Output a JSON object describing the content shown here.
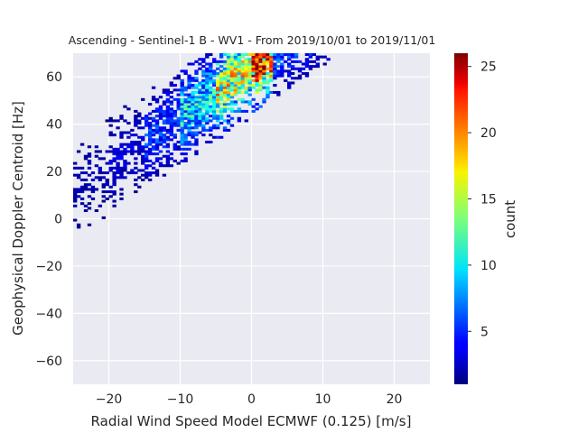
{
  "chart_data": {
    "type": "heatmap",
    "title": "Ascending - Sentinel-1 B - WV1 - From 2019/10/01 to 2019/11/01",
    "xlabel": "Radial Wind Speed Model ECMWF (0.125) [m/s]",
    "ylabel": "Geophysical Doppler Centroid [Hz]",
    "xlim": [
      -25,
      25
    ],
    "ylim": [
      -70,
      70
    ],
    "xticks": [
      -20,
      -10,
      0,
      10,
      20
    ],
    "yticks": [
      -60,
      -40,
      -20,
      0,
      20,
      40,
      60
    ],
    "grid": true,
    "background": "#eaeaf2",
    "colorbar": {
      "label": "count",
      "cmap": "jet",
      "range": [
        1,
        26
      ],
      "ticks": [
        5,
        10,
        15,
        20,
        25
      ]
    },
    "bins": {
      "dx": 0.5,
      "dy": 1.0
    },
    "trend": {
      "slope": 2.05,
      "intercept": 64.0
    },
    "distribution": [
      {
        "x_min": -25,
        "x_max": -20,
        "count_scale": 1.5
      },
      {
        "x_min": -20,
        "x_max": -15,
        "count_scale": 2.5
      },
      {
        "x_min": -15,
        "x_max": -10,
        "count_scale": 5
      },
      {
        "x_min": -10,
        "x_max": -5,
        "count_scale": 10
      },
      {
        "x_min": -5,
        "x_max": 0,
        "count_scale": 16
      },
      {
        "x_min": 0,
        "x_max": 3,
        "count_scale": 22
      },
      {
        "x_min": 3,
        "x_max": 12,
        "count_scale": 6
      }
    ]
  }
}
